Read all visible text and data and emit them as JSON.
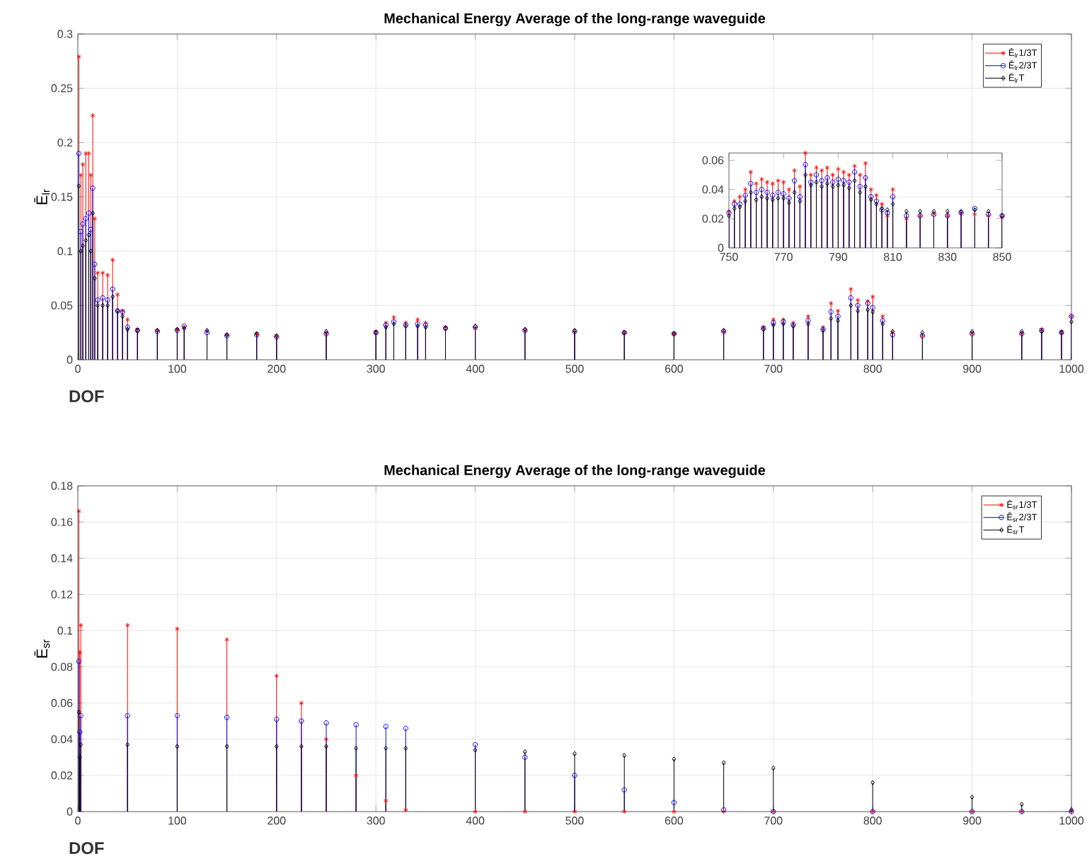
{
  "chart_data": [
    {
      "type": "lollipop",
      "title": "Mechanical Energy Average of the long-range waveguide",
      "xlabel": "DOF",
      "ylabel": "Ē$_{lr}$",
      "grid": true,
      "legend": "top right",
      "xlim": [
        0,
        1000
      ],
      "xticks": [
        0,
        100,
        200,
        300,
        400,
        500,
        600,
        700,
        800,
        900,
        1000
      ],
      "ylim": [
        0,
        0.3
      ],
      "yticks": [
        0,
        0.05,
        0.1,
        0.15,
        0.2,
        0.25,
        0.3
      ],
      "x": [
        1,
        3,
        5,
        8,
        11,
        13,
        15,
        17,
        20,
        25,
        30,
        35,
        40,
        45,
        50,
        60,
        80,
        100,
        107,
        130,
        150,
        180,
        200,
        250,
        300,
        310,
        318,
        330,
        342,
        350,
        370,
        400,
        450,
        500,
        550,
        600,
        650,
        690,
        700,
        710,
        720,
        735,
        750,
        758,
        765,
        778,
        785,
        795,
        800,
        810,
        820,
        850,
        900,
        950,
        970,
        990,
        1000
      ],
      "series": [
        {
          "name": "Ē$_{lr}$1/3T",
          "color": "#ff0000",
          "marker": "cross",
          "values": [
            0.279,
            0.17,
            0.18,
            0.19,
            0.19,
            0.17,
            0.225,
            0.13,
            0.08,
            0.08,
            0.078,
            0.092,
            0.06,
            0.045,
            0.037,
            0.028,
            0.027,
            0.028,
            0.03,
            0.026,
            0.023,
            0.024,
            0.022,
            0.024,
            0.026,
            0.034,
            0.039,
            0.034,
            0.037,
            0.034,
            0.03,
            0.029,
            0.027,
            0.026,
            0.025,
            0.024,
            0.026,
            0.03,
            0.037,
            0.037,
            0.034,
            0.04,
            0.03,
            0.052,
            0.045,
            0.065,
            0.055,
            0.054,
            0.058,
            0.04,
            0.025,
            0.022,
            0.024,
            0.024,
            0.028,
            0.026,
            0.04
          ]
        },
        {
          "name": "Ē$_{lr}$2/3T",
          "color": "#0000ff",
          "marker": "circle",
          "values": [
            0.19,
            0.118,
            0.125,
            0.13,
            0.135,
            0.12,
            0.158,
            0.088,
            0.055,
            0.057,
            0.055,
            0.065,
            0.045,
            0.044,
            0.03,
            0.027,
            0.026,
            0.027,
            0.031,
            0.025,
            0.022,
            0.023,
            0.021,
            0.024,
            0.025,
            0.032,
            0.035,
            0.032,
            0.033,
            0.032,
            0.029,
            0.03,
            0.027,
            0.026,
            0.025,
            0.024,
            0.026,
            0.029,
            0.034,
            0.035,
            0.032,
            0.036,
            0.028,
            0.044,
            0.04,
            0.057,
            0.05,
            0.052,
            0.048,
            0.036,
            0.023,
            0.022,
            0.024,
            0.024,
            0.027,
            0.025,
            0.04
          ]
        },
        {
          "name": "Ē$_{lr}$T",
          "color": "#000000",
          "marker": "diamond",
          "values": [
            0.16,
            0.1,
            0.105,
            0.11,
            0.115,
            0.1,
            0.135,
            0.075,
            0.05,
            0.05,
            0.05,
            0.058,
            0.045,
            0.04,
            0.028,
            0.027,
            0.027,
            0.028,
            0.029,
            0.027,
            0.023,
            0.024,
            0.022,
            0.026,
            0.025,
            0.03,
            0.033,
            0.031,
            0.031,
            0.03,
            0.029,
            0.031,
            0.028,
            0.027,
            0.025,
            0.024,
            0.027,
            0.028,
            0.032,
            0.033,
            0.031,
            0.033,
            0.027,
            0.038,
            0.036,
            0.05,
            0.045,
            0.046,
            0.044,
            0.033,
            0.026,
            0.025,
            0.026,
            0.026,
            0.026,
            0.025,
            0.035
          ]
        }
      ]
    },
    {
      "type": "lollipop",
      "xlim": [
        750,
        850
      ],
      "xticks": [
        750,
        770,
        790,
        810,
        830,
        850
      ],
      "ylim": [
        0,
        0.065
      ],
      "yticks": [
        0,
        0.02,
        0.04,
        0.06
      ],
      "x": [
        750,
        752,
        754,
        756,
        758,
        760,
        762,
        764,
        766,
        768,
        770,
        772,
        774,
        776,
        778,
        780,
        782,
        784,
        786,
        788,
        790,
        792,
        794,
        796,
        798,
        800,
        802,
        804,
        806,
        808,
        810,
        815,
        820,
        825,
        830,
        835,
        840,
        845,
        850
      ],
      "series": [
        {
          "color": "#ff0000",
          "marker": "cross",
          "values": [
            0.025,
            0.032,
            0.035,
            0.04,
            0.052,
            0.044,
            0.047,
            0.045,
            0.044,
            0.046,
            0.045,
            0.04,
            0.053,
            0.042,
            0.065,
            0.05,
            0.055,
            0.053,
            0.055,
            0.05,
            0.054,
            0.052,
            0.05,
            0.056,
            0.05,
            0.058,
            0.04,
            0.036,
            0.03,
            0.022,
            0.04,
            0.02,
            0.022,
            0.023,
            0.022,
            0.024,
            0.023,
            0.022,
            0.021
          ]
        },
        {
          "color": "#0000ff",
          "marker": "circle",
          "values": [
            0.024,
            0.03,
            0.03,
            0.036,
            0.044,
            0.038,
            0.04,
            0.038,
            0.036,
            0.038,
            0.037,
            0.034,
            0.046,
            0.035,
            0.057,
            0.045,
            0.05,
            0.046,
            0.048,
            0.045,
            0.047,
            0.046,
            0.045,
            0.052,
            0.042,
            0.048,
            0.035,
            0.032,
            0.026,
            0.024,
            0.035,
            0.022,
            0.022,
            0.023,
            0.022,
            0.024,
            0.027,
            0.023,
            0.022
          ]
        },
        {
          "color": "#000000",
          "marker": "diamond",
          "values": [
            0.022,
            0.027,
            0.028,
            0.032,
            0.038,
            0.033,
            0.035,
            0.034,
            0.033,
            0.034,
            0.034,
            0.031,
            0.038,
            0.032,
            0.05,
            0.043,
            0.045,
            0.042,
            0.044,
            0.042,
            0.043,
            0.043,
            0.041,
            0.046,
            0.038,
            0.042,
            0.033,
            0.03,
            0.027,
            0.026,
            0.03,
            0.025,
            0.025,
            0.025,
            0.025,
            0.025,
            0.026,
            0.025,
            0.022
          ]
        }
      ]
    },
    {
      "type": "lollipop",
      "title": "Mechanical Energy Average of the long-range waveguide",
      "xlabel": "DOF",
      "ylabel": "Ē$_{sr}$",
      "grid": true,
      "legend": "top right",
      "xlim": [
        0,
        1000
      ],
      "xticks": [
        0,
        100,
        200,
        300,
        400,
        500,
        600,
        700,
        800,
        900,
        1000
      ],
      "ylim": [
        0,
        0.18
      ],
      "yticks": [
        0,
        0.02,
        0.04,
        0.06,
        0.08,
        0.1,
        0.12,
        0.14,
        0.16,
        0.18
      ],
      "x": [
        1,
        2,
        3,
        50,
        100,
        150,
        200,
        225,
        250,
        280,
        310,
        330,
        400,
        450,
        500,
        550,
        600,
        650,
        700,
        800,
        900,
        950,
        1000
      ],
      "series": [
        {
          "name": "Ē$_{sr}$1/3T",
          "color": "#ff0000",
          "marker": "cross",
          "values": [
            0.166,
            0.088,
            0.103,
            0.103,
            0.101,
            0.095,
            0.075,
            0.06,
            0.04,
            0.02,
            0.006,
            0.001,
            0,
            0,
            0,
            0,
            0,
            0,
            0,
            0,
            0,
            0,
            0
          ]
        },
        {
          "name": "Ē$_{sr}$2/3T",
          "color": "#0000ff",
          "marker": "circle",
          "values": [
            0.083,
            0.044,
            0.053,
            0.053,
            0.053,
            0.052,
            0.051,
            0.05,
            0.049,
            0.048,
            0.047,
            0.046,
            0.037,
            0.03,
            0.02,
            0.012,
            0.005,
            0.001,
            0,
            0,
            0,
            0,
            0
          ]
        },
        {
          "name": "Ē$_{sr}$T",
          "color": "#000000",
          "marker": "diamond",
          "values": [
            0.055,
            0.03,
            0.037,
            0.037,
            0.036,
            0.036,
            0.036,
            0.036,
            0.036,
            0.035,
            0.035,
            0.035,
            0.034,
            0.033,
            0.032,
            0.031,
            0.029,
            0.027,
            0.024,
            0.016,
            0.008,
            0.004,
            0.001
          ]
        }
      ]
    }
  ]
}
